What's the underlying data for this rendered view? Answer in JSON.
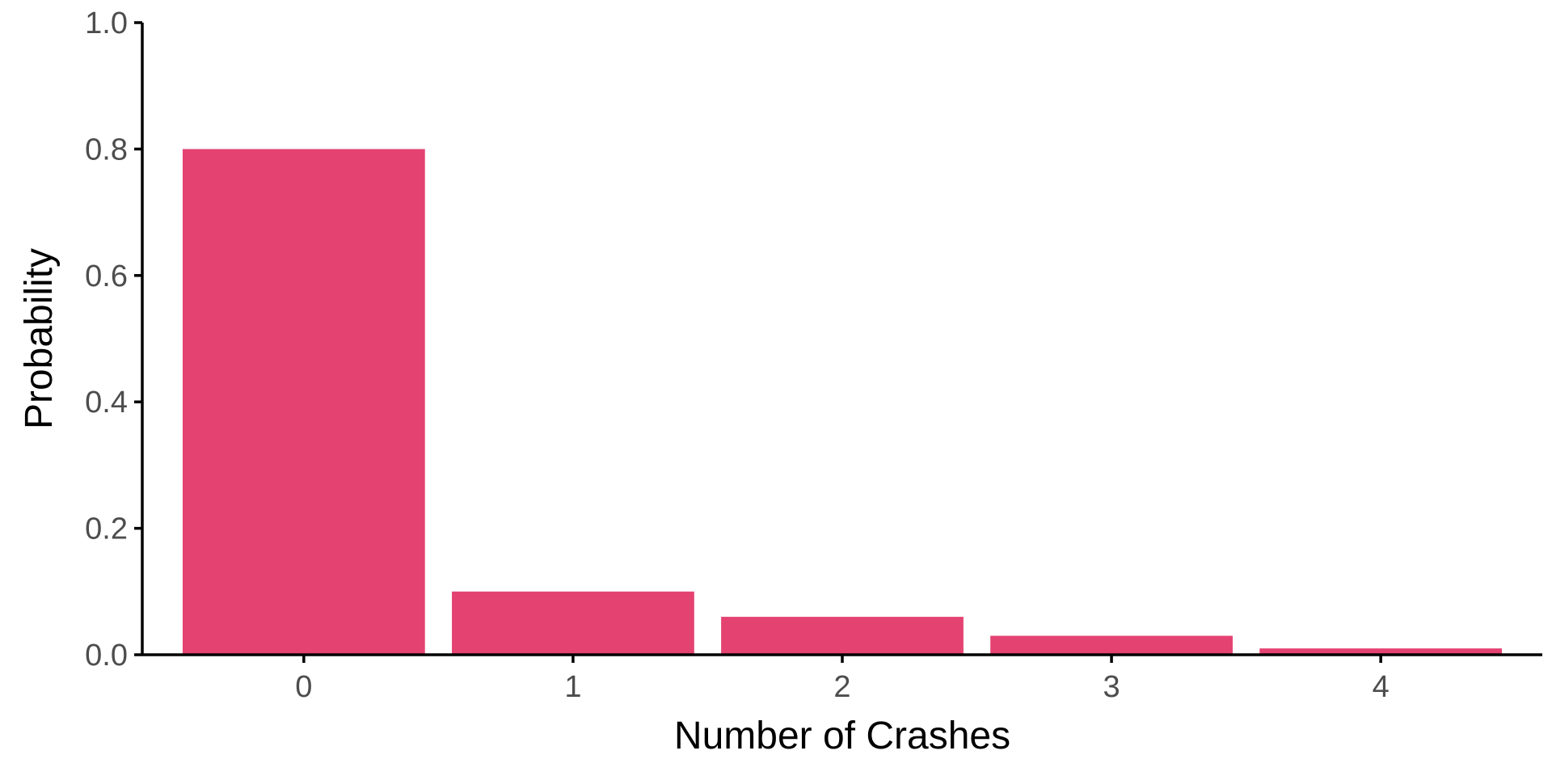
{
  "chart_data": {
    "type": "bar",
    "categories": [
      "0",
      "1",
      "2",
      "3",
      "4"
    ],
    "values": [
      0.8,
      0.1,
      0.06,
      0.03,
      0.01
    ],
    "xlabel": "Number of Crashes",
    "ylabel": "Probability",
    "ylim": [
      0,
      1
    ],
    "yticks": [
      0.0,
      0.2,
      0.4,
      0.6,
      0.8,
      1.0
    ],
    "ytick_labels": [
      "0.0",
      "0.2",
      "0.4",
      "0.6",
      "0.8",
      "1.0"
    ],
    "grid": false,
    "legend": "none",
    "bar_color": "#e44371"
  }
}
